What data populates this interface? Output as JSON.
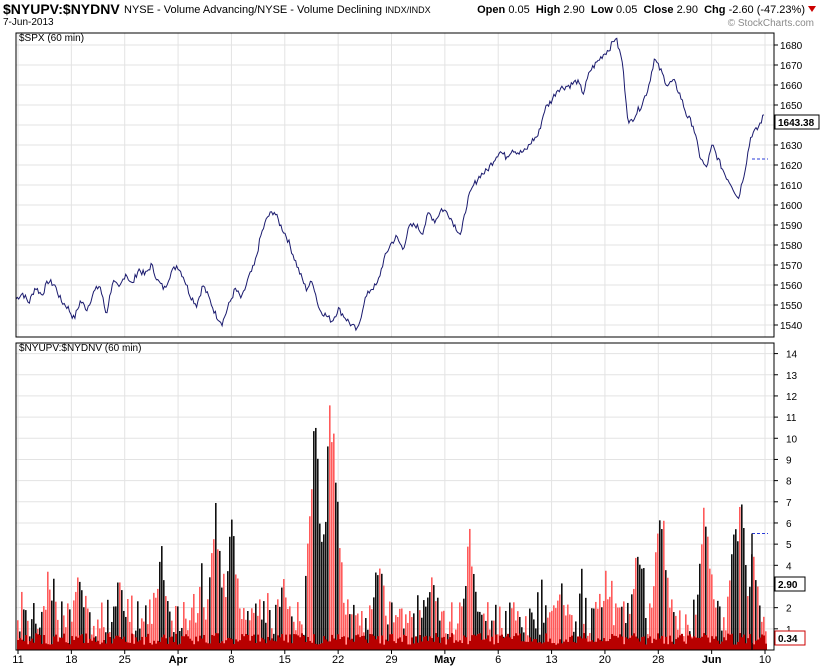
{
  "header": {
    "symbol": "$NYUPV:$NYDNV",
    "description": "NYSE - Volume Advancing/NYSE - Volume Declining",
    "exchange": "INDX/INDX",
    "date": "7-Jun-2013",
    "open_label": "Open",
    "open": "0.05",
    "high_label": "High",
    "high": "2.90",
    "low_label": "Low",
    "low": "0.05",
    "close_label": "Close",
    "close": "2.90",
    "chg_label": "Chg",
    "chg": "-2.60 (-47.23%)",
    "watermark": "© StockCharts.com"
  },
  "colors": {
    "price_line": "#1a1a6e",
    "bar_up": "#ff5a5a",
    "bar_dark": "#101010",
    "base_fill": "#b80000",
    "grid": "#e3e3e3",
    "frame": "#000000"
  },
  "chart_data": [
    {
      "type": "line",
      "title": "$SPX (60 min)",
      "series": [
        {
          "name": "$SPX",
          "values": [
            1553,
            1556,
            1551,
            1559,
            1555,
            1562,
            1560,
            1552,
            1549,
            1543,
            1552,
            1548,
            1556,
            1560,
            1545,
            1562,
            1558,
            1566,
            1560,
            1568,
            1565,
            1570,
            1562,
            1558,
            1566,
            1570,
            1564,
            1555,
            1550,
            1560,
            1553,
            1545,
            1541,
            1550,
            1558,
            1553,
            1563,
            1570,
            1585,
            1594,
            1597,
            1590,
            1584,
            1575,
            1566,
            1558,
            1562,
            1548,
            1545,
            1542,
            1548,
            1544,
            1540,
            1537,
            1552,
            1558,
            1560,
            1572,
            1580,
            1584,
            1578,
            1589,
            1590,
            1586,
            1596,
            1592,
            1598,
            1596,
            1590,
            1585,
            1602,
            1610,
            1615,
            1617,
            1622,
            1627,
            1624,
            1628,
            1626,
            1627,
            1632,
            1635,
            1648,
            1652,
            1658,
            1659,
            1660,
            1662,
            1656,
            1667,
            1671,
            1675,
            1678,
            1684,
            1672,
            1640,
            1645,
            1650,
            1658,
            1673,
            1667,
            1660,
            1662,
            1655,
            1645,
            1640,
            1625,
            1618,
            1630,
            1622,
            1615,
            1610,
            1603,
            1617,
            1635,
            1638,
            1645
          ],
          "close_last": 1643.38,
          "ref_level": 1623
        }
      ],
      "ylim": [
        1534,
        1686
      ],
      "yticks": [
        1540,
        1550,
        1560,
        1570,
        1580,
        1590,
        1600,
        1610,
        1620,
        1630,
        1640,
        1650,
        1660,
        1670,
        1680
      ],
      "last_value_label": "1643.38",
      "grid": true
    },
    {
      "type": "bar",
      "title": "$NYUPV:$NYDNV (60 min)",
      "ylim": [
        0,
        14.5
      ],
      "yticks": [
        1,
        2,
        3,
        4,
        5,
        6,
        7,
        8,
        9,
        10,
        11,
        12,
        13,
        14
      ],
      "last_value_label": "2.90",
      "min_value_label": "0.34",
      "ref_level": 5.5,
      "grid": true
    }
  ],
  "x_axis": {
    "ticks": [
      {
        "label": "11",
        "bold": false
      },
      {
        "label": "18",
        "bold": false
      },
      {
        "label": "25",
        "bold": false
      },
      {
        "label": "Apr",
        "bold": true
      },
      {
        "label": "8",
        "bold": false
      },
      {
        "label": "15",
        "bold": false
      },
      {
        "label": "22",
        "bold": false
      },
      {
        "label": "29",
        "bold": false
      },
      {
        "label": "May",
        "bold": true
      },
      {
        "label": "6",
        "bold": false
      },
      {
        "label": "13",
        "bold": false
      },
      {
        "label": "20",
        "bold": false
      },
      {
        "label": "28",
        "bold": false
      },
      {
        "label": "Jun",
        "bold": true
      },
      {
        "label": "10",
        "bold": false
      }
    ]
  }
}
